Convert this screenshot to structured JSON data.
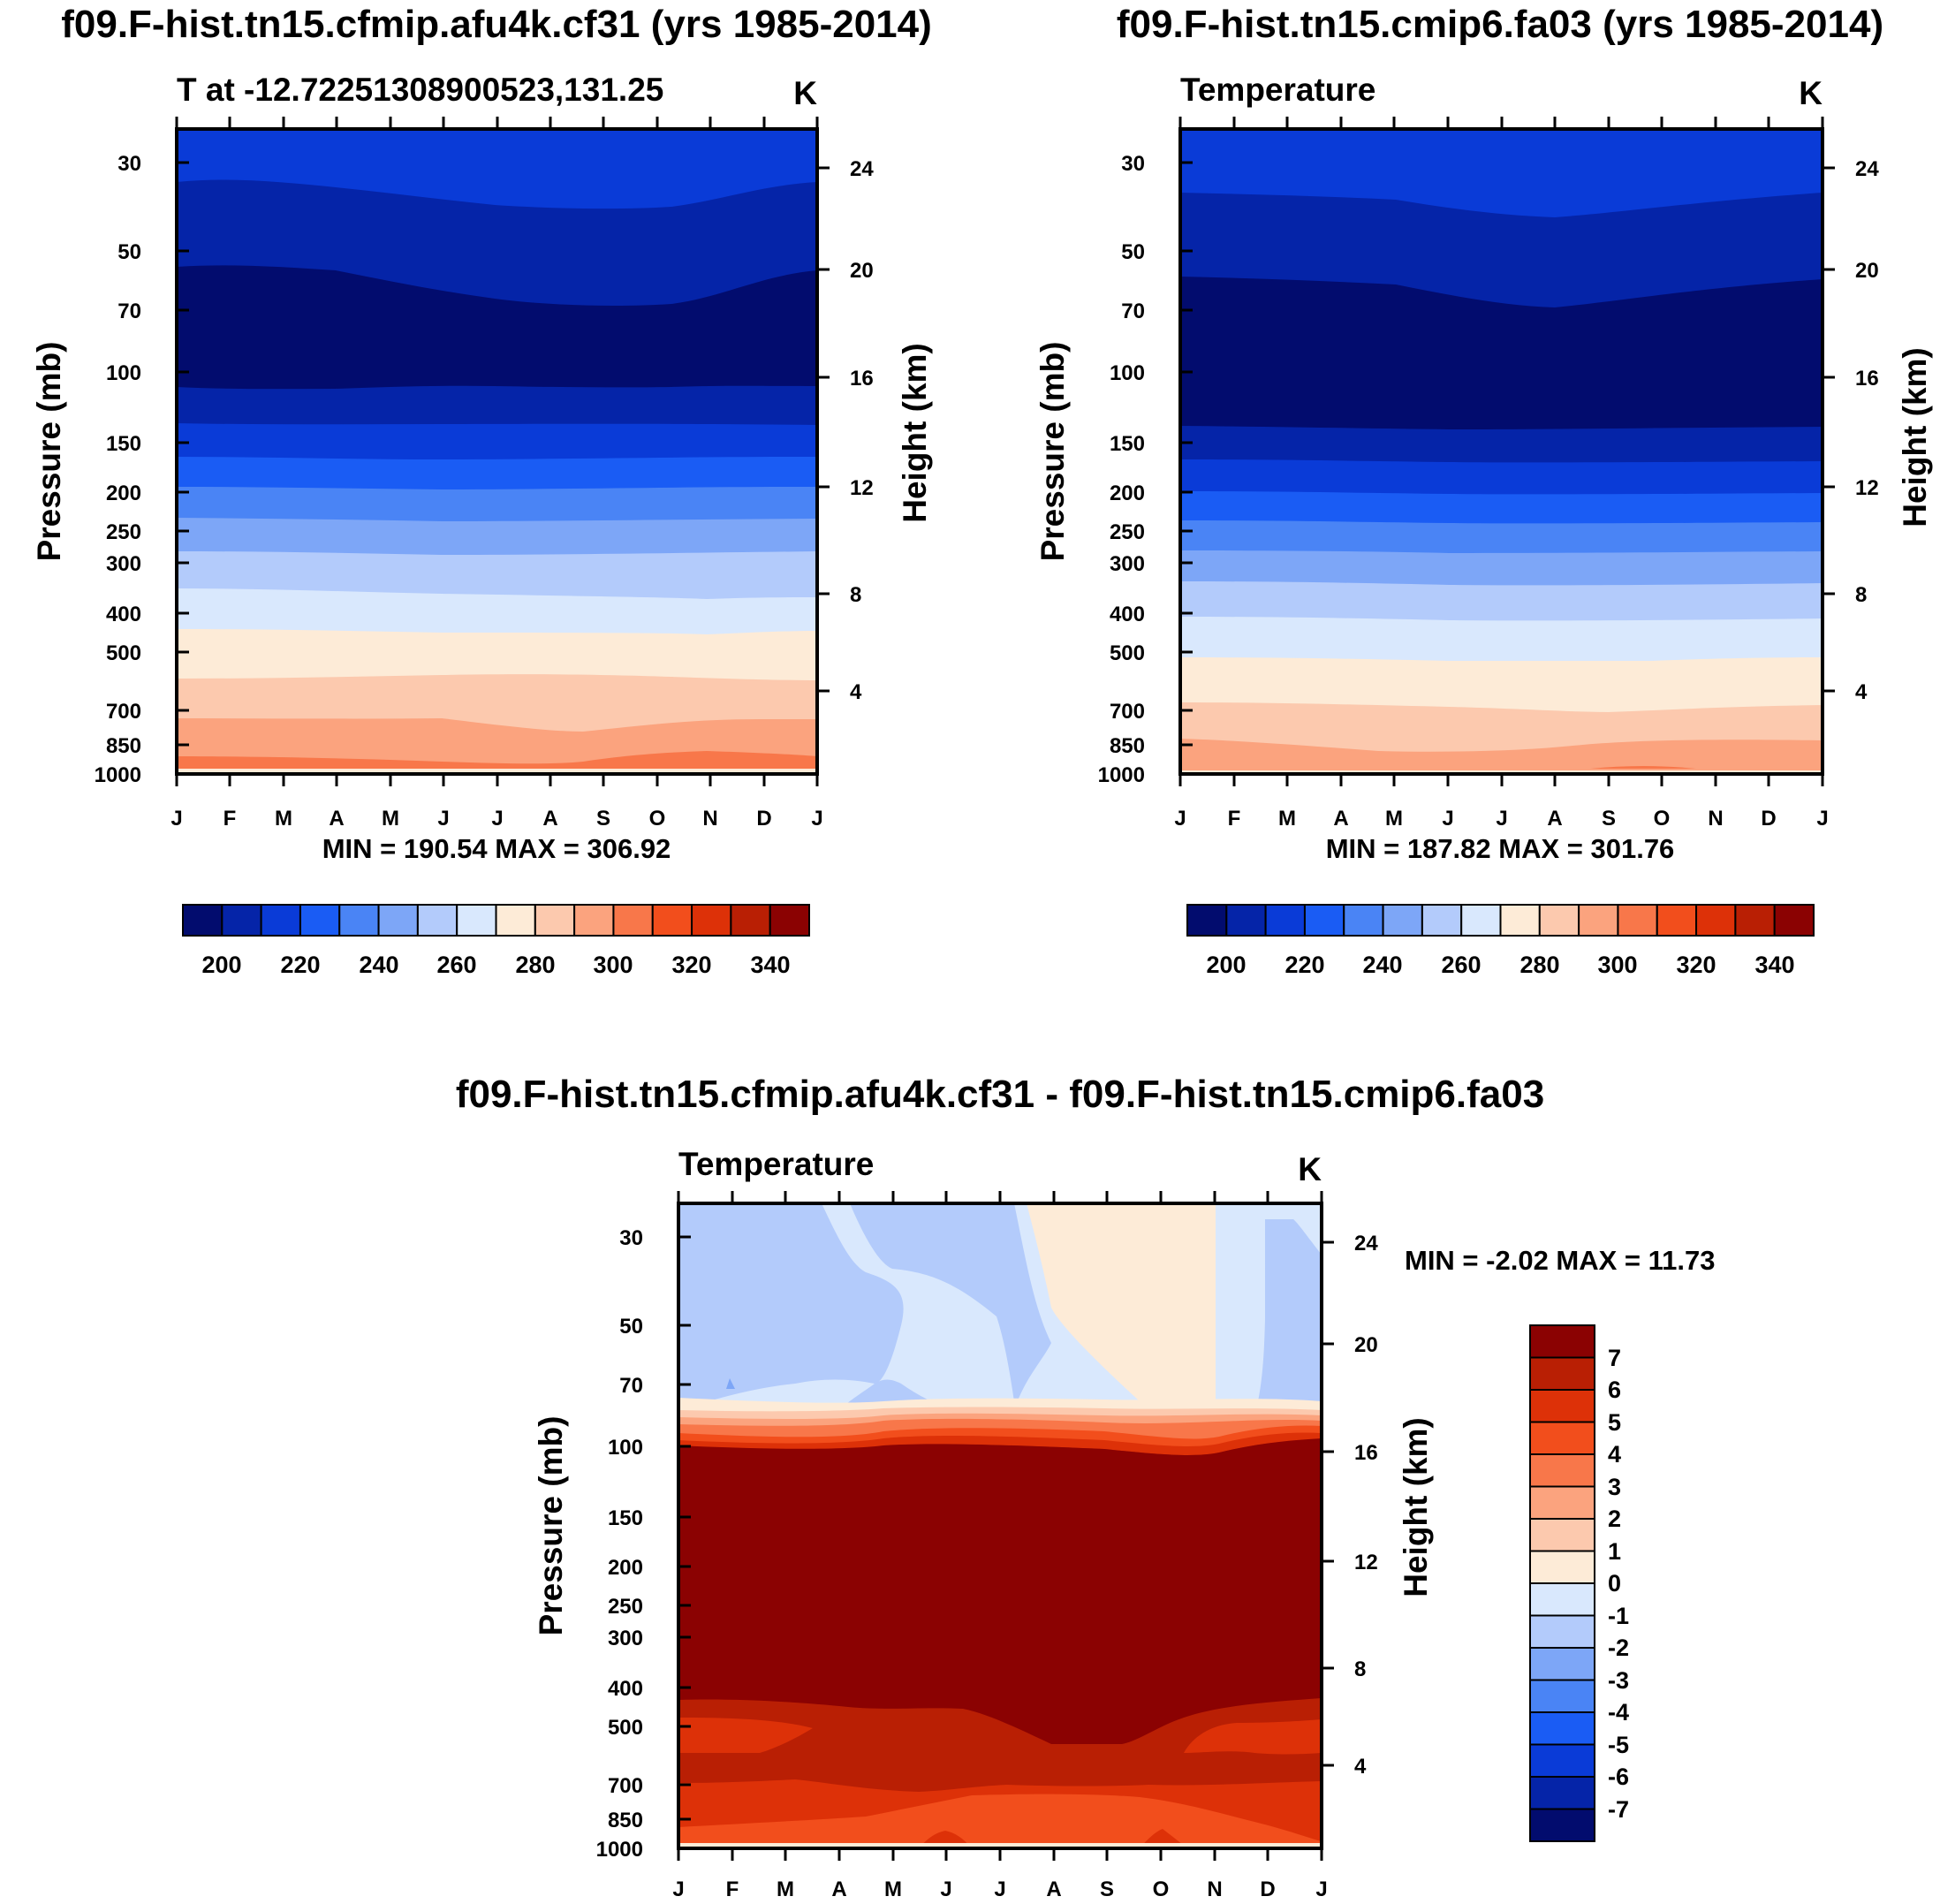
{
  "page": {
    "background": "#ffffff"
  },
  "chart_data": [
    {
      "type": "contour",
      "title": "f09.F-hist.tn15.cfmip.afu4k.cf31 (yrs 1985-2014)",
      "subtitle_left": "T at -12.72251308900523,131.25",
      "units": "K",
      "ylabel": "Pressure (mb)",
      "ylabel_right": "Height (km)",
      "x_ticks": [
        "J",
        "F",
        "M",
        "A",
        "M",
        "J",
        "J",
        "A",
        "S",
        "O",
        "N",
        "D",
        "J"
      ],
      "y_ticks": [
        30,
        50,
        70,
        100,
        150,
        200,
        250,
        300,
        400,
        500,
        700,
        850,
        1000
      ],
      "height_ticks": [
        24,
        20,
        16,
        12,
        8,
        4
      ],
      "stats": "MIN = 190.54 MAX = 306.92",
      "colorbar_labels": [
        "200",
        "220",
        "240",
        "260",
        "280",
        "300",
        "320",
        "340"
      ],
      "colorbar_colors": [
        "#020c6e",
        "#0524a8",
        "#0a3bd7",
        "#1a5cf4",
        "#4a84f5",
        "#7da6f7",
        "#b3cbfb",
        "#d9e8fd",
        "#fdebd7",
        "#fcc9ae",
        "#fba37e",
        "#f8774a",
        "#f24e1c",
        "#dd3108",
        "#b91f04",
        "#8b0202"
      ],
      "layers": [
        {
          "level": 30,
          "value": 215
        },
        {
          "level": 50,
          "value": 205
        },
        {
          "level": 70,
          "value": 195
        },
        {
          "level": 120,
          "value": 205
        },
        {
          "level": 150,
          "value": 215
        },
        {
          "level": 200,
          "value": 225
        },
        {
          "level": 250,
          "value": 235
        },
        {
          "level": 300,
          "value": 245
        },
        {
          "level": 400,
          "value": 255
        },
        {
          "level": 500,
          "value": 265
        },
        {
          "level": 700,
          "value": 275
        },
        {
          "level": 850,
          "value": 285
        },
        {
          "level": 950,
          "value": 295
        },
        {
          "level": 1000,
          "value": 305
        }
      ]
    },
    {
      "type": "contour",
      "title": "f09.F-hist.tn15.cmip6.fa03 (yrs 1985-2014)",
      "subtitle_left": "Temperature",
      "units": "K",
      "ylabel": "Pressure (mb)",
      "ylabel_right": "Height (km)",
      "x_ticks": [
        "J",
        "F",
        "M",
        "A",
        "M",
        "J",
        "J",
        "A",
        "S",
        "O",
        "N",
        "D",
        "J"
      ],
      "y_ticks": [
        30,
        50,
        70,
        100,
        150,
        200,
        250,
        300,
        400,
        500,
        700,
        850,
        1000
      ],
      "height_ticks": [
        24,
        20,
        16,
        12,
        8,
        4
      ],
      "stats": "MIN = 187.82 MAX = 301.76",
      "colorbar_labels": [
        "200",
        "220",
        "240",
        "260",
        "280",
        "300",
        "320",
        "340"
      ],
      "colorbar_colors": [
        "#020c6e",
        "#0524a8",
        "#0a3bd7",
        "#1a5cf4",
        "#4a84f5",
        "#7da6f7",
        "#b3cbfb",
        "#d9e8fd",
        "#fdebd7",
        "#fcc9ae",
        "#fba37e",
        "#f8774a",
        "#f24e1c",
        "#dd3108",
        "#b91f04",
        "#8b0202"
      ],
      "layers": [
        {
          "level": 30,
          "value": 215
        },
        {
          "level": 50,
          "value": 205
        },
        {
          "level": 140,
          "value": 195
        },
        {
          "level": 160,
          "value": 205
        },
        {
          "level": 200,
          "value": 215
        },
        {
          "level": 250,
          "value": 225
        },
        {
          "level": 300,
          "value": 235
        },
        {
          "level": 400,
          "value": 245
        },
        {
          "level": 500,
          "value": 255
        },
        {
          "level": 700,
          "value": 265
        },
        {
          "level": 850,
          "value": 275
        },
        {
          "level": 1000,
          "value": 285
        }
      ]
    },
    {
      "type": "contour",
      "title": "f09.F-hist.tn15.cfmip.afu4k.cf31 - f09.F-hist.tn15.cmip6.fa03",
      "subtitle_left": "Temperature",
      "units": "K",
      "ylabel": "Pressure (mb)",
      "ylabel_right": "Height (km)",
      "x_ticks": [
        "J",
        "F",
        "M",
        "A",
        "M",
        "J",
        "J",
        "A",
        "S",
        "O",
        "N",
        "D",
        "J"
      ],
      "y_ticks": [
        30,
        50,
        70,
        100,
        150,
        200,
        250,
        300,
        400,
        500,
        700,
        850,
        1000
      ],
      "height_ticks": [
        24,
        20,
        16,
        12,
        8,
        4
      ],
      "stats": "MIN =  -2.02 MAX =  11.73",
      "colorbar_labels": [
        "7",
        "6",
        "5",
        "4",
        "3",
        "2",
        "1",
        "0",
        "-1",
        "-2",
        "-3",
        "-4",
        "-5",
        "-6",
        "-7"
      ],
      "colorbar_colors": [
        "#8b0202",
        "#b91f04",
        "#dd3108",
        "#f24e1c",
        "#f8774a",
        "#fba37e",
        "#fcc9ae",
        "#fdebd7",
        "#d9e8fd",
        "#b3cbfb",
        "#7da6f7",
        "#4a84f5",
        "#1a5cf4",
        "#0a3bd7",
        "#0524a8",
        "#020c6e"
      ],
      "layers": [
        {
          "level": 77,
          "value": -1.5
        },
        {
          "level": 80,
          "value": 0.5
        },
        {
          "level": 83,
          "value": 2.5
        },
        {
          "level": 88,
          "value": 4.5
        },
        {
          "level": 95,
          "value": 6.5
        },
        {
          "level": 430,
          "value": 8
        },
        {
          "level": 480,
          "value": 6.5
        },
        {
          "level": 600,
          "value": 5.5
        },
        {
          "level": 700,
          "value": 6.5
        },
        {
          "level": 950,
          "value": 5.5
        },
        {
          "level": 1000,
          "value": 4.5
        }
      ]
    }
  ]
}
